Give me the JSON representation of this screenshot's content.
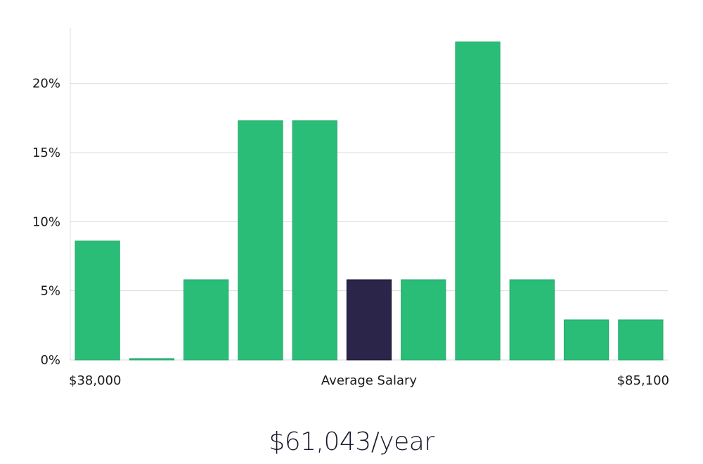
{
  "chart_data": {
    "type": "bar",
    "title": "",
    "xlabel": "Average Salary",
    "ylabel": "",
    "x_range_labels": {
      "min": "$38,000",
      "max": "$85,100"
    },
    "values": [
      8.6,
      0.1,
      5.8,
      17.3,
      17.3,
      5.8,
      5.8,
      23.0,
      5.8,
      2.9,
      2.9
    ],
    "highlight_index": 5,
    "yticks": [
      0,
      5,
      10,
      15,
      20
    ],
    "ytick_labels": [
      "0%",
      "5%",
      "10%",
      "15%",
      "20%"
    ],
    "ylim": [
      0,
      24
    ],
    "grid": true,
    "colors": {
      "bar": "#2abd77",
      "bar_stroke": "#25a96a",
      "highlight": "#2a2549",
      "highlight_stroke": "#1a1633"
    }
  },
  "summary": {
    "salary_text": "$61,043/year"
  }
}
